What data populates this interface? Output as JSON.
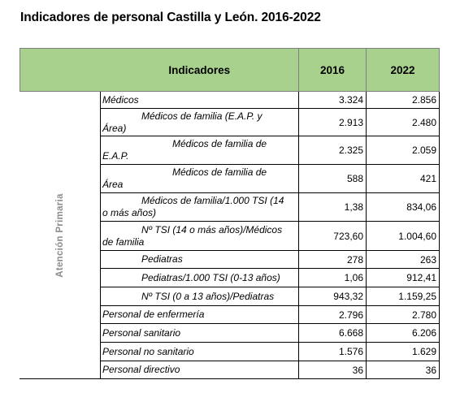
{
  "title": "Indicadores de personal Castilla y León. 2016-2022",
  "table": {
    "headers": [
      "Indicadores",
      "2016",
      "2022"
    ],
    "group_label": "Atención Primaria",
    "rows": [
      {
        "l1": "Médicos",
        "l2": "",
        "v2016": "3.324",
        "v2022": "2.856"
      },
      {
        "l1": "Médicos de familia (E.A.P. y",
        "l2": "Área)",
        "v2016": "2.913",
        "v2022": "2.480"
      },
      {
        "l1": "Médicos de familia de",
        "l2": "E.A.P.",
        "v2016": "2.325",
        "v2022": "2.059"
      },
      {
        "l1": "Médicos de familia de",
        "l2": "Área",
        "v2016": "588",
        "v2022": "421"
      },
      {
        "l1": "Médicos de familia/1.000 TSI (14",
        "l2": "o más años)",
        "v2016": "1,38",
        "v2022": "834,06"
      },
      {
        "l1": "Nº TSI (14 o más años)/Médicos",
        "l2": "de familia",
        "v2016": "723,60",
        "v2022": "1.004,60"
      },
      {
        "l1": "Pediatras",
        "l2": "",
        "v2016": "278",
        "v2022": "263"
      },
      {
        "l1": "Pediatras/1.000 TSI (0-13 años)",
        "l2": "",
        "v2016": "1,06",
        "v2022": "912,41"
      },
      {
        "l1": "Nº TSI (0 a 13 años)/Pediatras",
        "l2": "",
        "v2016": "943,32",
        "v2022": "1.159,25"
      },
      {
        "l1": "Personal de enfermería",
        "l2": "",
        "v2016": "2.796",
        "v2022": "2.780"
      },
      {
        "l1": "Personal sanitario",
        "l2": "",
        "v2016": "6.668",
        "v2022": "6.206"
      },
      {
        "l1": "Personal no sanitario",
        "l2": "",
        "v2016": "1.576",
        "v2022": "1.629"
      },
      {
        "l1": "Personal directivo",
        "l2": "",
        "v2016": "36",
        "v2022": "36"
      }
    ]
  },
  "colors": {
    "header_bg": "#a9d18e",
    "group_text": "#8c8c8c"
  }
}
